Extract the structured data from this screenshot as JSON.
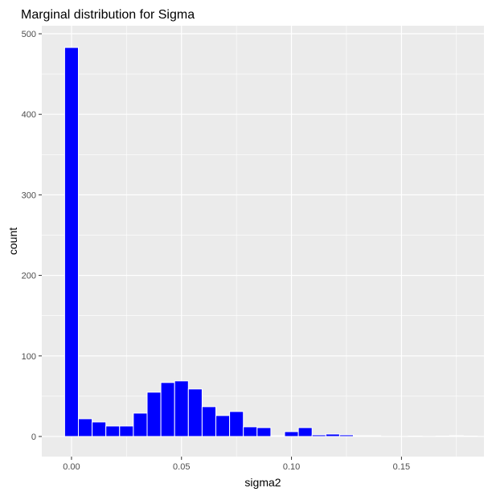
{
  "chart_data": {
    "type": "bar",
    "title": "Marginal distribution for Sigma",
    "xlabel": "sigma2",
    "ylabel": "count",
    "xlim": [
      -0.0135,
      0.1875
    ],
    "ylim": [
      -25.0,
      510.0
    ],
    "x_ticks": [
      {
        "value": 0.0,
        "label": "0.00"
      },
      {
        "value": 0.05,
        "label": "0.05"
      },
      {
        "value": 0.1,
        "label": "0.10"
      },
      {
        "value": 0.15,
        "label": "0.15"
      }
    ],
    "y_ticks": [
      {
        "value": 0,
        "label": "0"
      },
      {
        "value": 100,
        "label": "100"
      },
      {
        "value": 200,
        "label": "200"
      },
      {
        "value": 300,
        "label": "300"
      },
      {
        "value": 400,
        "label": "400"
      },
      {
        "value": 500,
        "label": "500"
      }
    ],
    "bin_width": 0.00625,
    "bin_starts": [
      -0.003125,
      0.003125,
      0.009375,
      0.015625,
      0.021875,
      0.028125,
      0.034375,
      0.040625,
      0.046875,
      0.053125,
      0.059375,
      0.065625,
      0.071875,
      0.078125,
      0.084375,
      0.090625,
      0.096875,
      0.103125,
      0.109375,
      0.115625,
      0.121875,
      0.128125,
      0.134375,
      0.140625,
      0.146875,
      0.153125,
      0.159375,
      0.165625,
      0.171875,
      0.178125
    ],
    "values": [
      483,
      22,
      18,
      13,
      13,
      29,
      55,
      67,
      69,
      59,
      37,
      26,
      31,
      12,
      11,
      1,
      6,
      11,
      2,
      3,
      2,
      1,
      1,
      0,
      0,
      0.5,
      0,
      0.5,
      1,
      0.5
    ],
    "grid": true,
    "legend": "none",
    "colors": {
      "panel": "#EBEBEB",
      "grid_major": "#FFFFFF",
      "bar_fill": "#0000FF",
      "bar_outline": "#FFFFFF",
      "tick_text": "#4D4D4D",
      "tick_mark": "#333333",
      "title_text": "#000000",
      "axis_title_text": "#000000"
    }
  }
}
